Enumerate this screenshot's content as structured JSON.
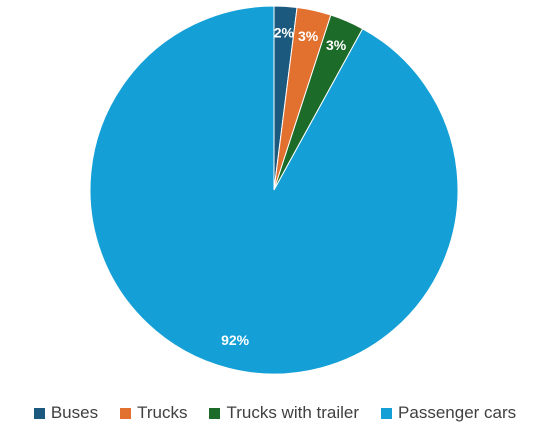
{
  "chart_data": {
    "type": "pie",
    "categories": [
      "Buses",
      "Trucks",
      "Trucks with trailer",
      "Passenger cars"
    ],
    "values": [
      2,
      3,
      3,
      92
    ],
    "value_labels": [
      "2%",
      "3%",
      "3%",
      "92%"
    ],
    "colors": [
      "#1b5a7e",
      "#e2702f",
      "#1d6b28",
      "#14a0d6"
    ],
    "legend": "bottom"
  }
}
